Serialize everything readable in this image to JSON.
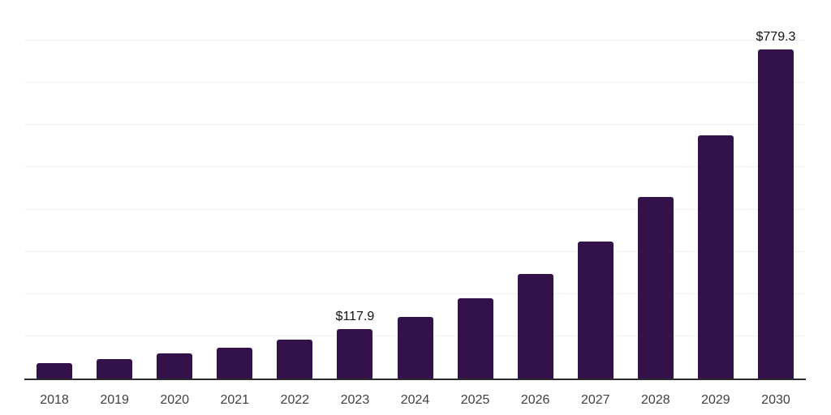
{
  "chart_data": {
    "type": "bar",
    "title": "",
    "xlabel": "",
    "ylabel": "",
    "categories": [
      "2018",
      "2019",
      "2020",
      "2021",
      "2022",
      "2023",
      "2024",
      "2025",
      "2026",
      "2027",
      "2028",
      "2029",
      "2030"
    ],
    "values": [
      37.4,
      47.0,
      60.4,
      73.8,
      93.0,
      117.9,
      146.7,
      190.7,
      248.3,
      325.0,
      430.4,
      576.1,
      779.3
    ],
    "data_labels": {
      "2023": "$117.9",
      "2030": "$779.3"
    },
    "ylim": [
      0,
      900
    ],
    "gridline_step": 100,
    "grid": "horizontal",
    "legend": "none",
    "colors": {
      "bar": "#331249",
      "gridline": "#f0f0f0",
      "axis_line": "#2b2b2b",
      "tick_label": "#404040",
      "data_label": "#111111",
      "background": "#ffffff"
    }
  }
}
